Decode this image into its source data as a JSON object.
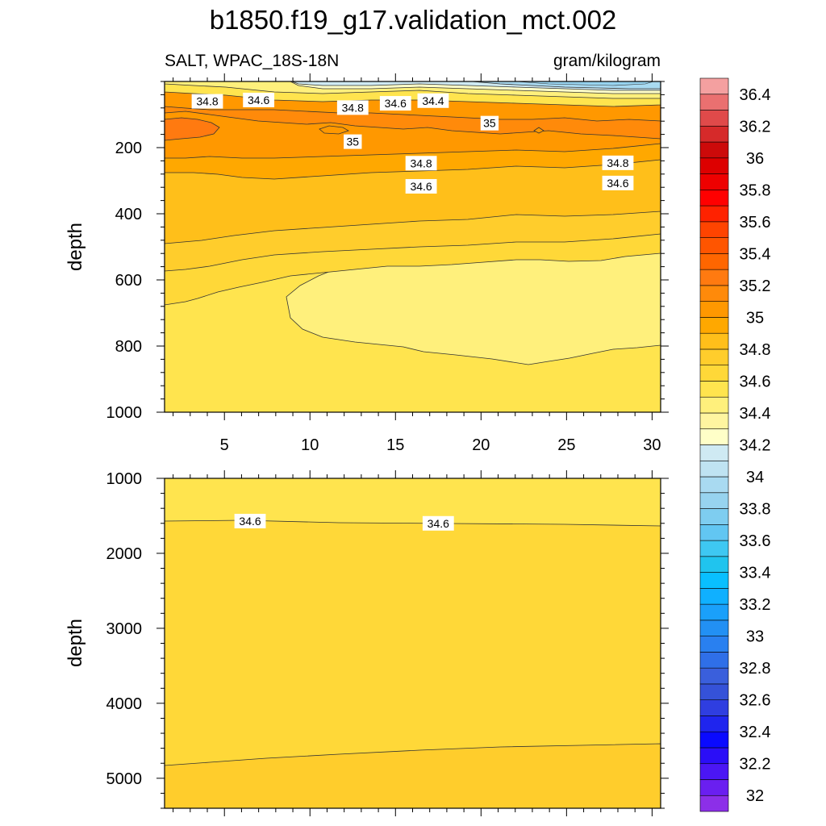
{
  "chart_data": {
    "type": "contour",
    "title": "b1850.f19_g17.validation_mct.002",
    "subtitle_left": "SALT, WPAC_18S-18N",
    "subtitle_right": "gram/kilogram",
    "colorbar": {
      "levels": [
        32.0,
        32.1,
        32.2,
        32.3,
        32.4,
        32.5,
        32.6,
        32.7,
        32.8,
        32.9,
        33.0,
        33.1,
        33.2,
        33.3,
        33.4,
        33.5,
        33.6,
        33.7,
        33.8,
        33.9,
        34.0,
        34.1,
        34.2,
        34.3,
        34.4,
        34.5,
        34.6,
        34.7,
        34.8,
        34.9,
        35.0,
        35.1,
        35.2,
        35.3,
        35.4,
        35.5,
        35.6,
        35.7,
        35.8,
        35.9,
        36.0,
        36.1,
        36.2,
        36.3,
        36.4,
        36.5
      ],
      "tick_labels": [
        "32",
        "32.2",
        "32.4",
        "32.6",
        "32.8",
        "33",
        "33.2",
        "33.4",
        "33.6",
        "33.8",
        "34",
        "34.2",
        "34.4",
        "34.6",
        "34.8",
        "35",
        "35.2",
        "35.4",
        "35.6",
        "35.8",
        "36",
        "36.2",
        "36.4"
      ],
      "colors": [
        "#8c2fe8",
        "#6a1ff0",
        "#4b16f4",
        "#2b0ef7",
        "#0a0aff",
        "#1f25ee",
        "#2f3ee0",
        "#3552d8",
        "#3a5fdc",
        "#2f6fe8",
        "#2980f0",
        "#2290f4",
        "#1aa0fa",
        "#10b0ff",
        "#09bfff",
        "#20c4ee",
        "#3ec8f2",
        "#62c6f2",
        "#7ecdf0",
        "#97d3ef",
        "#a9daf1",
        "#bfe3f2",
        "#cfeaf3",
        "#ffffc8",
        "#fff5a0",
        "#fff07c",
        "#ffe44e",
        "#ffd838",
        "#ffcd2c",
        "#ffbf1a",
        "#ffa800",
        "#ff9800",
        "#ff8a0a",
        "#ff7a10",
        "#ff6600",
        "#ff5500",
        "#ff4400",
        "#ff2200",
        "#ff0000",
        "#ee0000",
        "#dd0000",
        "#cc0a0a",
        "#d62a2a",
        "#e04a4a",
        "#ea7070",
        "#f4a0a0"
      ]
    },
    "panels": [
      {
        "x_range": [
          1.5,
          30.5
        ],
        "y_range": [
          0,
          1000
        ],
        "y_inverted": true,
        "ylabel": "depth",
        "x_ticks": [
          5,
          10,
          15,
          20,
          25,
          30
        ],
        "x_tick_labels": [
          "5",
          "10",
          "15",
          "20",
          "25",
          "30"
        ],
        "y_ticks": [
          200,
          400,
          600,
          800,
          1000
        ],
        "y_tick_labels": [
          "200",
          "400",
          "600",
          "800",
          "1000"
        ],
        "contour_labels": [
          {
            "text": "34.8",
            "x": 4.0,
            "depth": 60
          },
          {
            "text": "34.6",
            "x": 7.0,
            "depth": 56
          },
          {
            "text": "34.8",
            "x": 12.5,
            "depth": 79
          },
          {
            "text": "34.6",
            "x": 15.0,
            "depth": 66
          },
          {
            "text": "34.4",
            "x": 17.2,
            "depth": 58
          },
          {
            "text": "35",
            "x": 20.5,
            "depth": 126
          },
          {
            "text": "35",
            "x": 12.5,
            "depth": 182
          },
          {
            "text": "34.8",
            "x": 16.5,
            "depth": 247
          },
          {
            "text": "34.8",
            "x": 28.0,
            "depth": 246
          },
          {
            "text": "34.6",
            "x": 16.5,
            "depth": 317
          },
          {
            "text": "34.6",
            "x": 28.0,
            "depth": 307
          }
        ]
      },
      {
        "y_range": [
          1000,
          5400
        ],
        "y_inverted": true,
        "ylabel": "depth",
        "y_ticks": [
          1000,
          2000,
          3000,
          4000,
          5000
        ],
        "y_tick_labels": [
          "1000",
          "2000",
          "3000",
          "4000",
          "5000"
        ],
        "contour_labels": [
          {
            "text": "34.6",
            "x": 6.5,
            "depth": 1570
          },
          {
            "text": "34.6",
            "x": 17.5,
            "depth": 1600
          }
        ]
      }
    ]
  }
}
